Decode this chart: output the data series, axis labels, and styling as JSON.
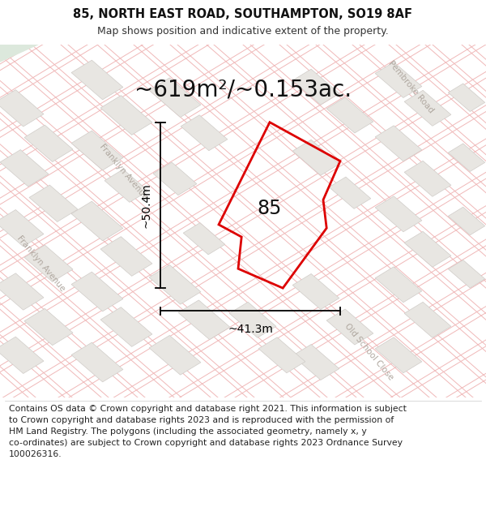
{
  "title": "85, NORTH EAST ROAD, SOUTHAMPTON, SO19 8AF",
  "subtitle": "Map shows position and indicative extent of the property.",
  "area_text": "~619m²/~0.153ac.",
  "label_85": "85",
  "dim_width": "~41.3m",
  "dim_height": "~50.4m",
  "footer": "Contains OS data © Crown copyright and database right 2021. This information is subject\nto Crown copyright and database rights 2023 and is reproduced with the permission of\nHM Land Registry. The polygons (including the associated geometry, namely x, y\nco-ordinates) are subject to Crown copyright and database rights 2023 Ordnance Survey\n100026316.",
  "map_bg": "#f8f7f5",
  "block_fill": "#e8e6e2",
  "block_edge": "#d0ccc8",
  "road_line_color": "#f0b8b8",
  "road_line_lw": 0.7,
  "property_edge_color": "#dd0000",
  "property_lw": 2.0,
  "dim_color": "#000000",
  "street_label_color": "#b0a8a0",
  "green_area_color": "#dce8dc",
  "title_fontsize": 10.5,
  "subtitle_fontsize": 9,
  "area_fontsize": 20,
  "label_fontsize": 17,
  "dim_fontsize": 10,
  "footer_fontsize": 7.8,
  "street_label_fontsize": 7.5,
  "white": "#ffffff",
  "dark": "#111111"
}
